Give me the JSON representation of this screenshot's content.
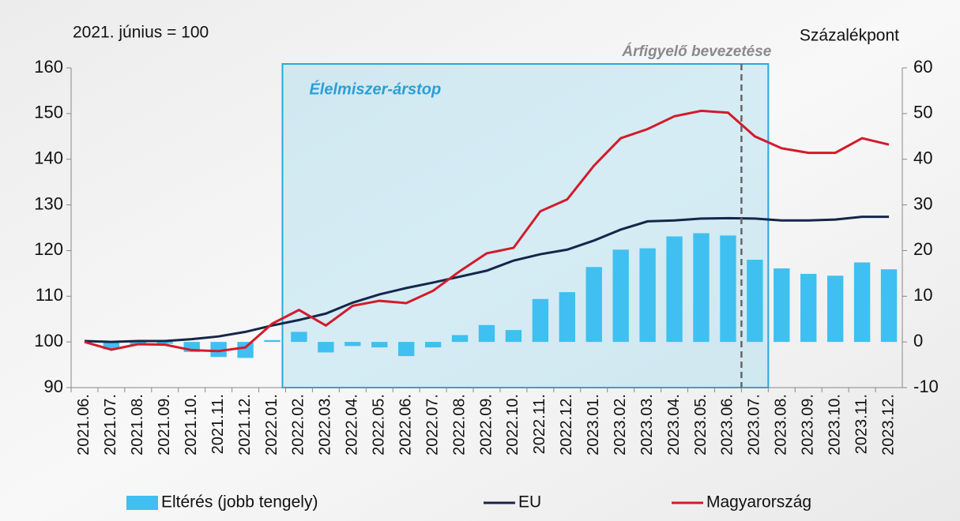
{
  "chart_data": {
    "type": "bar_line",
    "left_axis_title": "2021. június = 100",
    "right_axis_title": "Százalékpont",
    "categories": [
      "2021.06.",
      "2021.07.",
      "2021.08.",
      "2021.09.",
      "2021.10.",
      "2021.11.",
      "2021.12.",
      "2022.01.",
      "2022.02.",
      "2022.03.",
      "2022.04.",
      "2022.05.",
      "2022.06.",
      "2022.07.",
      "2022.08.",
      "2022.09.",
      "2022.10.",
      "2022.11.",
      "2022.12.",
      "2023.01.",
      "2023.02.",
      "2023.03.",
      "2023.04.",
      "2023.05.",
      "2023.06.",
      "2023.07.",
      "2023.08.",
      "2023.09.",
      "2023.10.",
      "2023.11.",
      "2023.12."
    ],
    "series": [
      {
        "name": "Eltérés (jobb tengely)",
        "type": "bar",
        "axis": "y2",
        "color": "#3fc0f0",
        "values": [
          0,
          -1.6,
          -0.7,
          -0.4,
          -2.2,
          -3.3,
          -3.5,
          0.4,
          2.2,
          -2.3,
          -0.9,
          -1.2,
          -3.1,
          -1.2,
          1.5,
          3.7,
          2.6,
          9.4,
          10.9,
          16.4,
          20.2,
          20.5,
          23.1,
          23.8,
          23.3,
          18,
          16.1,
          14.9,
          14.5,
          17.4,
          15.9
        ]
      },
      {
        "name": "EU",
        "type": "line",
        "color": "#14264a",
        "values": [
          100.2,
          100,
          100.2,
          100.2,
          100.6,
          101.2,
          102.2,
          103.6,
          104.8,
          106.2,
          108.6,
          110.4,
          111.8,
          113,
          114.3,
          115.6,
          117.8,
          119.2,
          120.2,
          122.2,
          124.6,
          126.4,
          126.6,
          127,
          127.1,
          127,
          126.6,
          126.6,
          126.8,
          127.4,
          127.4
        ]
      },
      {
        "name": "Magyarország",
        "type": "line",
        "color": "#d41a2a",
        "values": [
          100,
          98.3,
          99.5,
          99.4,
          98.2,
          98,
          98.8,
          104,
          107,
          103.6,
          107.9,
          109,
          108.5,
          111.2,
          115.5,
          119.4,
          120.6,
          128.6,
          131.2,
          138.6,
          144.6,
          146.6,
          149.4,
          150.6,
          150.2,
          145,
          142.4,
          141.4,
          141.4,
          144.6,
          143.2
        ]
      }
    ],
    "ylim": [
      90,
      160
    ],
    "yticks": [
      90,
      100,
      110,
      120,
      130,
      140,
      150,
      160
    ],
    "y2lim": [
      -10,
      60
    ],
    "y2ticks": [
      -10,
      0,
      10,
      20,
      30,
      40,
      50,
      60
    ],
    "grid": false,
    "shaded_region": {
      "label": "Élelmiszer-árstop",
      "from": "2022.02.",
      "to": "2023.07."
    },
    "vertical_line": {
      "label": "Árfigyelő bevezetése",
      "before": "2023.07."
    },
    "legend": "bottom"
  }
}
